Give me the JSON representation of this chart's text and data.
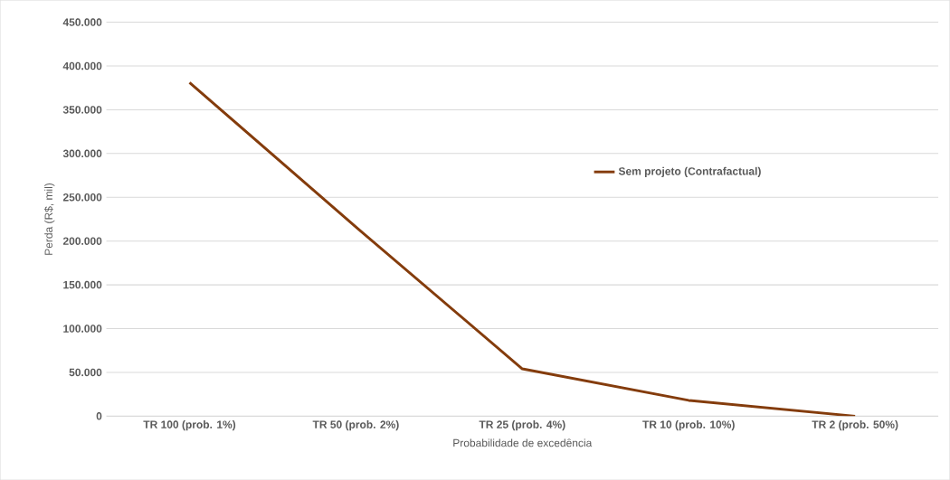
{
  "chart_data": {
    "type": "line",
    "xlabel": "Probabilidade de excedência",
    "ylabel": "Perda (R$, mil)",
    "categories": [
      "TR 100 (prob. 1%)",
      "TR 50 (prob. 2%)",
      "TR 25 (prob. 4%)",
      "TR 10 (prob. 10%)",
      "TR 2 (prob. 50%)"
    ],
    "series": [
      {
        "name": "Sem projeto (Contrafactual)",
        "color": "#843c0c",
        "values": [
          381000,
          216000,
          54000,
          18000,
          0
        ]
      }
    ],
    "ylim": [
      0,
      450000
    ],
    "yticks": [
      {
        "value": 0,
        "label": "0"
      },
      {
        "value": 50000,
        "label": "50.000"
      },
      {
        "value": 100000,
        "label": "100.000"
      },
      {
        "value": 150000,
        "label": "150.000"
      },
      {
        "value": 200000,
        "label": "200.000"
      },
      {
        "value": 250000,
        "label": "250.000"
      },
      {
        "value": 300000,
        "label": "300.000"
      },
      {
        "value": 350000,
        "label": "350.000"
      },
      {
        "value": 400000,
        "label": "400.000"
      },
      {
        "value": 450000,
        "label": "450.000"
      }
    ],
    "grid": "y",
    "legend": "right",
    "marker": "none",
    "line_style": "solid"
  }
}
